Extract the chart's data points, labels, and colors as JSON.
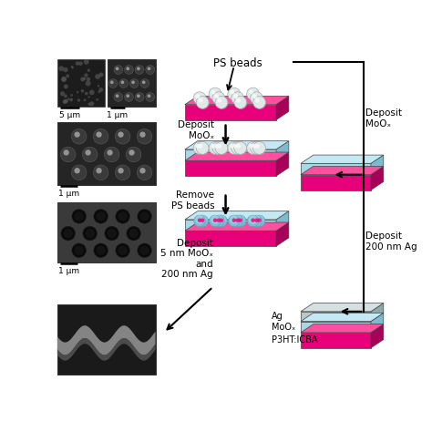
{
  "background_color": "#ffffff",
  "figsize": [
    4.74,
    4.74
  ],
  "dpi": 100,
  "colors": {
    "magenta": "#E8007A",
    "light_blue": "#A8D8E8",
    "light_blue_top": "#C5E8F5",
    "light_blue_side": "#7BBBCE",
    "magenta_side": "#A80058",
    "magenta_top": "#FF50A0",
    "silver": "#B8C8C8",
    "silver_top": "#D5E0E0",
    "silver_side": "#8AABAB",
    "bead_main": "#E0E8E8",
    "bead_highlight": "#F8FAFA",
    "bead_shadow": "#A0B0B0"
  },
  "labels": {
    "ps_beads": "PS beads",
    "deposit_moox_1": "Deposit\nMoOₓ",
    "remove_ps": "Remove\nPS beads",
    "deposit_final": "Deposit\n5 nm MoOₓ\nand\n200 nm Ag",
    "deposit_moox_right": "Deposit\nMoOₓ",
    "deposit_ag_right": "Deposit\n200 nm Ag",
    "layer_ag": "Ag",
    "layer_moox": "MoOₓ",
    "layer_p3ht": "P3HT:ICBA",
    "scale_5um": "5 μm",
    "scale_1um": "1 μm"
  }
}
